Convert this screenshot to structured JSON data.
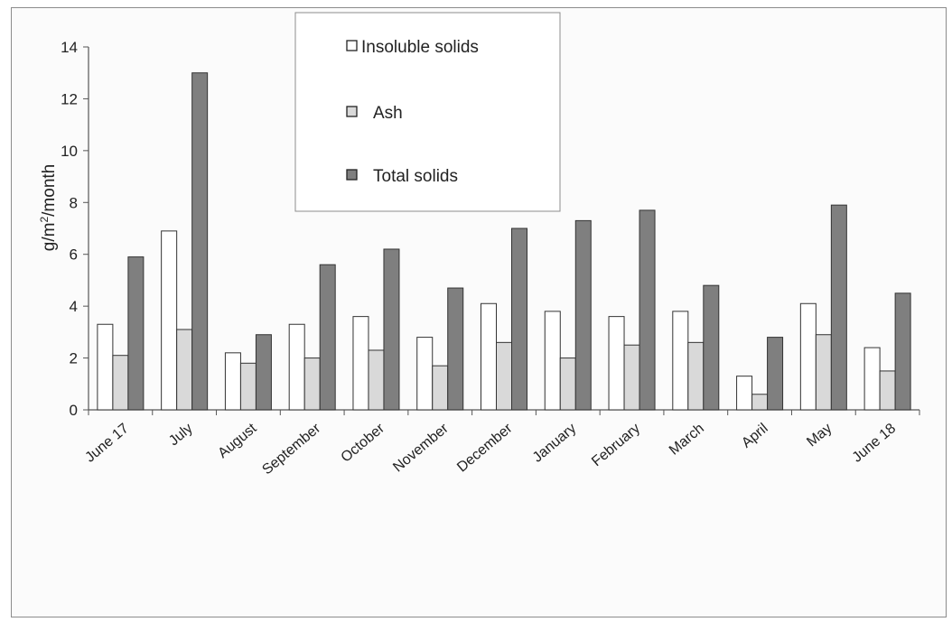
{
  "chart_data": {
    "type": "bar",
    "ylabel": "g/m²/month",
    "ylabel_main": "g/m",
    "ylabel_sup": "2",
    "ylabel_tail": "/month",
    "ylim": [
      0,
      14
    ],
    "yticks": [
      0,
      2,
      4,
      6,
      8,
      10,
      12,
      14
    ],
    "categories": [
      "June 17",
      "July",
      "August",
      "September",
      "October",
      "November",
      "December",
      "January",
      "February",
      "March",
      "April",
      "May",
      "June 18"
    ],
    "series": [
      {
        "name": "Insoluble solids",
        "color": "#ffffff",
        "values": [
          3.3,
          6.9,
          2.2,
          3.3,
          3.6,
          2.8,
          4.1,
          3.8,
          3.6,
          3.8,
          1.3,
          4.1,
          2.4
        ]
      },
      {
        "name": "Ash",
        "color": "#d9d9d9",
        "values": [
          2.1,
          3.1,
          1.8,
          2.0,
          2.3,
          1.7,
          2.6,
          2.0,
          2.5,
          2.6,
          0.6,
          2.9,
          1.5
        ]
      },
      {
        "name": "Total solids",
        "color": "#7f7f7f",
        "values": [
          5.9,
          13.0,
          2.9,
          5.6,
          6.2,
          4.7,
          7.0,
          7.3,
          7.7,
          4.8,
          2.8,
          7.9,
          4.5
        ]
      }
    ],
    "legend_position": "top-center"
  }
}
